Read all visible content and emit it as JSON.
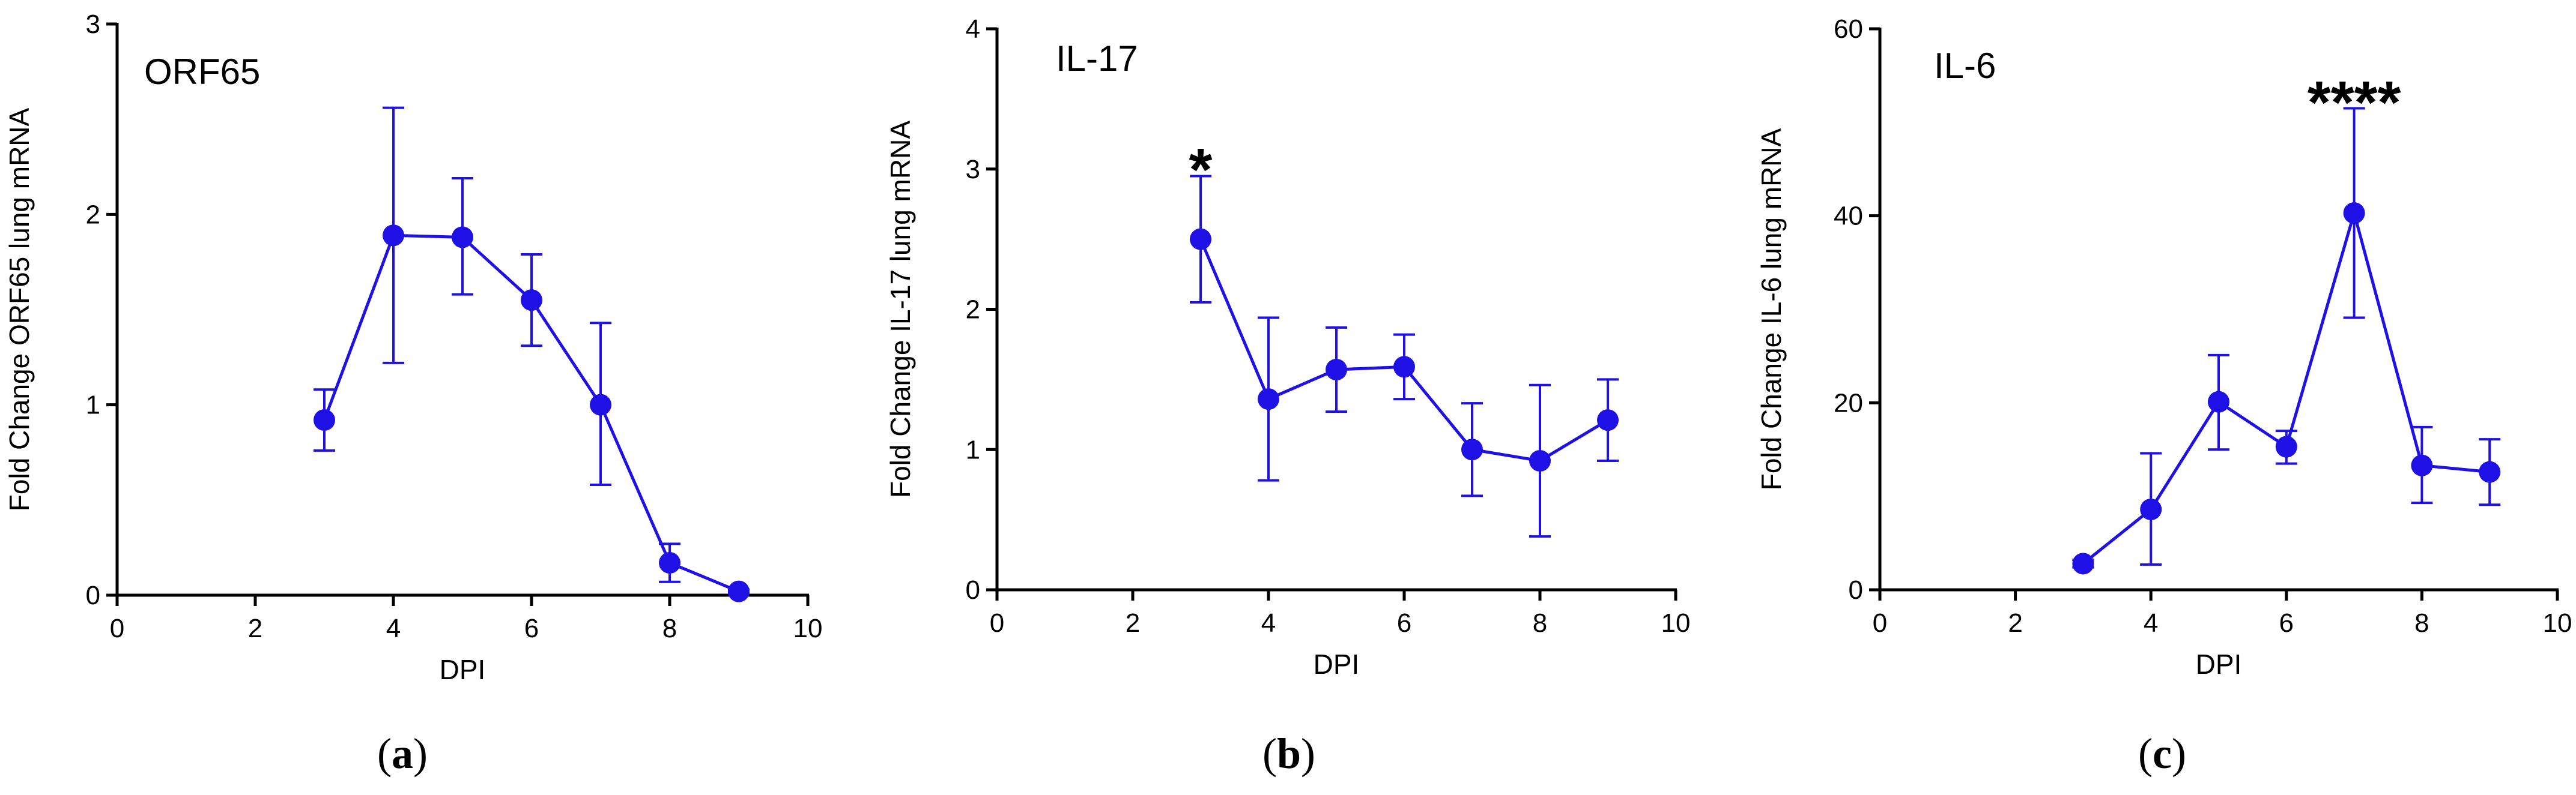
{
  "colors": {
    "series": "#1f10e6",
    "axis": "#000000",
    "text": "#000000"
  },
  "chart_data": [
    {
      "type": "line",
      "panel_label": "a",
      "title": "ORF65",
      "xlabel": "DPI",
      "ylabel": "Fold Change ORF65 lung mRNA",
      "xlim": [
        0,
        10
      ],
      "ylim": [
        0,
        3
      ],
      "xticks": [
        0,
        2,
        4,
        6,
        8,
        10
      ],
      "yticks": [
        0,
        1,
        2,
        3
      ],
      "x": [
        3,
        4,
        5,
        6,
        7,
        8,
        9
      ],
      "values": [
        0.92,
        1.89,
        1.88,
        1.55,
        1.0,
        0.17,
        0.02
      ],
      "error_upper": [
        1.08,
        2.56,
        2.19,
        1.79,
        1.43,
        0.27,
        0.03
      ],
      "error_lower": [
        0.76,
        1.22,
        1.58,
        1.31,
        0.58,
        0.07,
        0.01
      ],
      "annotations": []
    },
    {
      "type": "line",
      "panel_label": "b",
      "title": "IL-17",
      "xlabel": "DPI",
      "ylabel": "Fold Change IL-17 lung mRNA",
      "xlim": [
        0,
        10
      ],
      "ylim": [
        0,
        4
      ],
      "xticks": [
        0,
        2,
        4,
        6,
        8,
        10
      ],
      "yticks": [
        0,
        1,
        2,
        3,
        4
      ],
      "x": [
        3,
        4,
        5,
        6,
        7,
        8,
        9
      ],
      "values": [
        2.5,
        1.36,
        1.57,
        1.59,
        1.0,
        0.92,
        1.21
      ],
      "error_upper": [
        2.95,
        1.94,
        1.87,
        1.82,
        1.33,
        1.46,
        1.5
      ],
      "error_lower": [
        2.05,
        0.78,
        1.27,
        1.36,
        0.67,
        0.38,
        0.92
      ],
      "annotations": [
        {
          "text": "*",
          "x": 3,
          "y": 3.02
        }
      ]
    },
    {
      "type": "line",
      "panel_label": "c",
      "title": "IL-6",
      "xlabel": "DPI",
      "ylabel": "Fold Change IL-6 lung mRNA",
      "xlim": [
        0,
        10
      ],
      "ylim": [
        0,
        60
      ],
      "xticks": [
        0,
        2,
        4,
        6,
        8,
        10
      ],
      "yticks": [
        0,
        20,
        40,
        60
      ],
      "x": [
        3,
        4,
        5,
        6,
        7,
        8,
        9
      ],
      "values": [
        2.8,
        8.6,
        20.1,
        15.3,
        40.3,
        13.3,
        12.6
      ],
      "error_upper": [
        3.2,
        14.6,
        25.1,
        17.0,
        51.5,
        17.4,
        16.1
      ],
      "error_lower": [
        2.4,
        2.7,
        15.0,
        13.5,
        29.1,
        9.3,
        9.1
      ],
      "annotations": [
        {
          "text": "****",
          "x": 7,
          "y": 52.5
        }
      ]
    }
  ]
}
